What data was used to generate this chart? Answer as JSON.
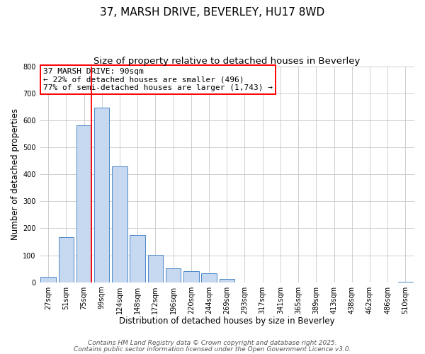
{
  "title": "37, MARSH DRIVE, BEVERLEY, HU17 8WD",
  "subtitle": "Size of property relative to detached houses in Beverley",
  "xlabel": "Distribution of detached houses by size in Beverley",
  "ylabel": "Number of detached properties",
  "bar_color": "#c6d9f1",
  "bar_edge_color": "#4d87c7",
  "background_color": "#ffffff",
  "grid_color": "#c8c8c8",
  "categories": [
    "27sqm",
    "51sqm",
    "75sqm",
    "99sqm",
    "124sqm",
    "148sqm",
    "172sqm",
    "196sqm",
    "220sqm",
    "244sqm",
    "269sqm",
    "293sqm",
    "317sqm",
    "341sqm",
    "365sqm",
    "389sqm",
    "413sqm",
    "438sqm",
    "462sqm",
    "486sqm",
    "510sqm"
  ],
  "values": [
    20,
    168,
    583,
    647,
    430,
    175,
    102,
    52,
    40,
    33,
    12,
    0,
    0,
    0,
    0,
    0,
    0,
    0,
    0,
    0,
    2
  ],
  "ylim": [
    0,
    800
  ],
  "yticks": [
    0,
    100,
    200,
    300,
    400,
    500,
    600,
    700,
    800
  ],
  "annotation_title": "37 MARSH DRIVE: 90sqm",
  "annotation_line1": "← 22% of detached houses are smaller (496)",
  "annotation_line2": "77% of semi-detached houses are larger (1,743) →",
  "footer_line1": "Contains HM Land Registry data © Crown copyright and database right 2025.",
  "footer_line2": "Contains public sector information licensed under the Open Government Licence v3.0.",
  "title_fontsize": 11,
  "subtitle_fontsize": 9.5,
  "axis_label_fontsize": 8.5,
  "tick_fontsize": 7,
  "annotation_fontsize": 8,
  "footer_fontsize": 6.5
}
